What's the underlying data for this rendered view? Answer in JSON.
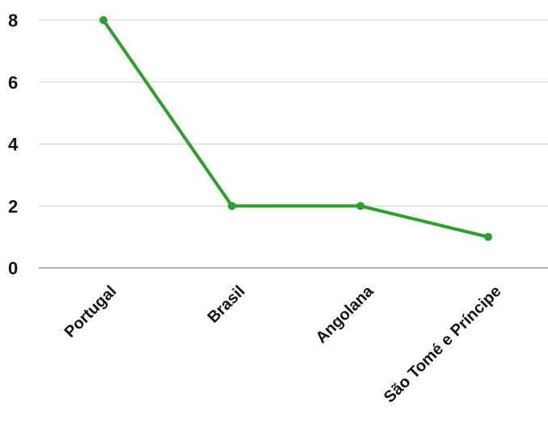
{
  "chart_data": {
    "type": "line",
    "categories": [
      "Portugal",
      "Brasil",
      "Angolana",
      "São Tomé e Príncipe"
    ],
    "series": [
      {
        "values": [
          8,
          2,
          2,
          1
        ],
        "color": "#2ca02c"
      }
    ],
    "ylim": [
      0,
      8
    ],
    "yticks": [
      0,
      2,
      4,
      6,
      8
    ],
    "grid": true,
    "legend": "none"
  }
}
